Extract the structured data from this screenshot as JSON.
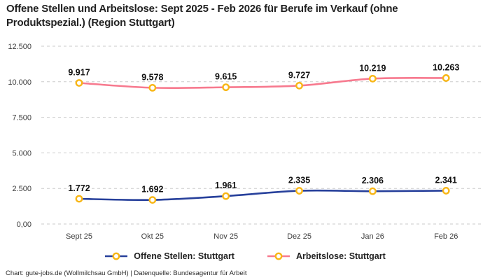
{
  "title": "Offene Stellen und Arbeitslose: Sept 2025 - Feb 2026 für Berufe im Verkauf (ohne\nProduktspezial.) (Region Stuttgart)",
  "footer": "Chart: gute-jobs.de (Wollmilchsau GmbH) | Datenquelle: Bundesagentur für Arbeit",
  "legend": {
    "items": [
      {
        "label": "Offene Stellen: Stuttgart",
        "color": "#27409b"
      },
      {
        "label": "Arbeitslose: Stuttgart",
        "color": "#f7798e"
      }
    ]
  },
  "chart_data": {
    "type": "line",
    "title": "Offene Stellen und Arbeitslose: Sept 2025 - Feb 2026 für Berufe im Verkauf (ohne Produktspezial.) (Region Stuttgart)",
    "categories": [
      "Sept 25",
      "Okt 25",
      "Nov 25",
      "Dez 25",
      "Jan 26",
      "Feb 26"
    ],
    "series": [
      {
        "name": "Offene Stellen: Stuttgart",
        "color": "#27409b",
        "values": [
          1772,
          1692,
          1961,
          2335,
          2306,
          2341
        ],
        "labels": [
          "1.772",
          "1.692",
          "1.961",
          "2.335",
          "2.306",
          "2.341"
        ]
      },
      {
        "name": "Arbeitslose: Stuttgart",
        "color": "#f7798e",
        "values": [
          9917,
          9578,
          9615,
          9727,
          10219,
          10263
        ],
        "labels": [
          "9.917",
          "9.578",
          "9.615",
          "9.727",
          "10.219",
          "10.263"
        ]
      }
    ],
    "yticks": [
      {
        "value": 0,
        "label": "0,00"
      },
      {
        "value": 2500,
        "label": "2.500"
      },
      {
        "value": 5000,
        "label": "5.000"
      },
      {
        "value": 7500,
        "label": "7.500"
      },
      {
        "value": 10000,
        "label": "10.000"
      },
      {
        "value": 12500,
        "label": "12.500"
      }
    ],
    "ylim": [
      0,
      12500
    ],
    "xlabel": "",
    "ylabel": "",
    "grid": "horizontal-dashed",
    "grid_color": "#cbcbcb",
    "marker_color": "#f8b616",
    "legend_position": "bottom"
  }
}
